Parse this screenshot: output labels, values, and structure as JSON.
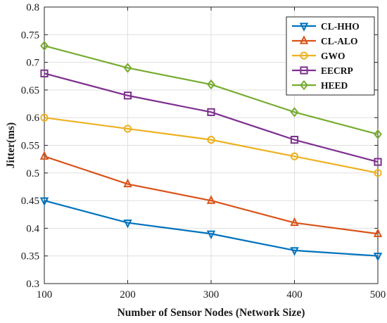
{
  "chart_data": {
    "type": "line",
    "title": "",
    "xlabel": "Number of Sensor Nodes (Network Size)",
    "ylabel": "Jitter(ms)",
    "x": [
      100,
      200,
      300,
      400,
      500
    ],
    "xticks": [
      "100",
      "200",
      "300",
      "400",
      "500"
    ],
    "yticks": [
      "0.3",
      "0.35",
      "0.4",
      "0.45",
      "0.5",
      "0.55",
      "0.6",
      "0.65",
      "0.7",
      "0.75",
      "0.8"
    ],
    "xlim": [
      100,
      500
    ],
    "ylim": [
      0.3,
      0.8
    ],
    "grid": true,
    "legend_position": "top-right",
    "series": [
      {
        "name": "CL-HHO",
        "values": [
          0.45,
          0.41,
          0.39,
          0.36,
          0.35
        ],
        "color": "#0072BD",
        "marker": "triangle-down"
      },
      {
        "name": "CL-ALO",
        "values": [
          0.53,
          0.48,
          0.45,
          0.41,
          0.39
        ],
        "color": "#D95319",
        "marker": "triangle-up"
      },
      {
        "name": "GWO",
        "values": [
          0.6,
          0.58,
          0.56,
          0.53,
          0.5
        ],
        "color": "#EDB120",
        "marker": "circle"
      },
      {
        "name": "EECRP",
        "values": [
          0.68,
          0.64,
          0.61,
          0.56,
          0.52
        ],
        "color": "#7E2F8E",
        "marker": "square"
      },
      {
        "name": "HEED",
        "values": [
          0.73,
          0.69,
          0.66,
          0.61,
          0.57
        ],
        "color": "#77AC30",
        "marker": "diamond"
      }
    ]
  }
}
